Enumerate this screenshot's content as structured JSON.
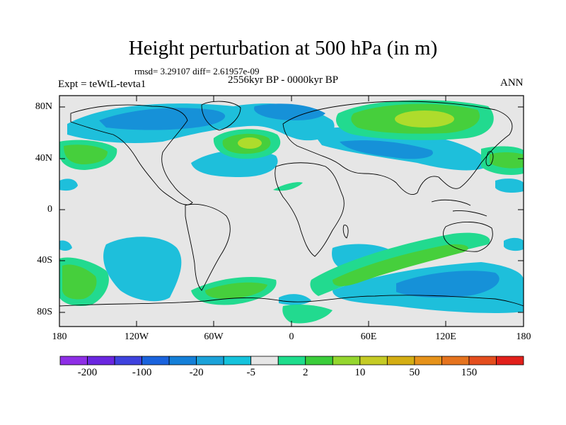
{
  "title": "Height perturbation at 500 hPa (in m)",
  "stats": "rmsd= 3.29107 diff= 2.61957e-09",
  "subtitle": "2556kyr BP - 0000kyr BP",
  "experiment": "Expt = teWtL-tevta1",
  "season": "ANN",
  "lat_ticks": [
    "80N",
    "40N",
    "0",
    "40S",
    "80S"
  ],
  "lon_ticks": [
    "180",
    "120W",
    "60W",
    "0",
    "60E",
    "120E",
    "180"
  ],
  "colorbar": {
    "colors": [
      "#8e2ee6",
      "#6a26e0",
      "#3e42de",
      "#1a63dd",
      "#147fd8",
      "#1ba2d9",
      "#15c3dc",
      "#e6e6e6",
      "#1edd8c",
      "#3acd3a",
      "#94d62e",
      "#c5cb25",
      "#d4ae13",
      "#e6921a",
      "#e5731e",
      "#e44e1e",
      "#e2201b"
    ],
    "labels": [
      "-200",
      "-100",
      "-20",
      "-5",
      "2",
      "10",
      "50",
      "150"
    ]
  },
  "map_colors": {
    "neutral": "#e6e6e6",
    "cyan": "#1ebfdb",
    "blue": "#1691d8",
    "green_light": "#22da8f",
    "green": "#46cf3c",
    "yellow_green": "#aedc2c"
  }
}
